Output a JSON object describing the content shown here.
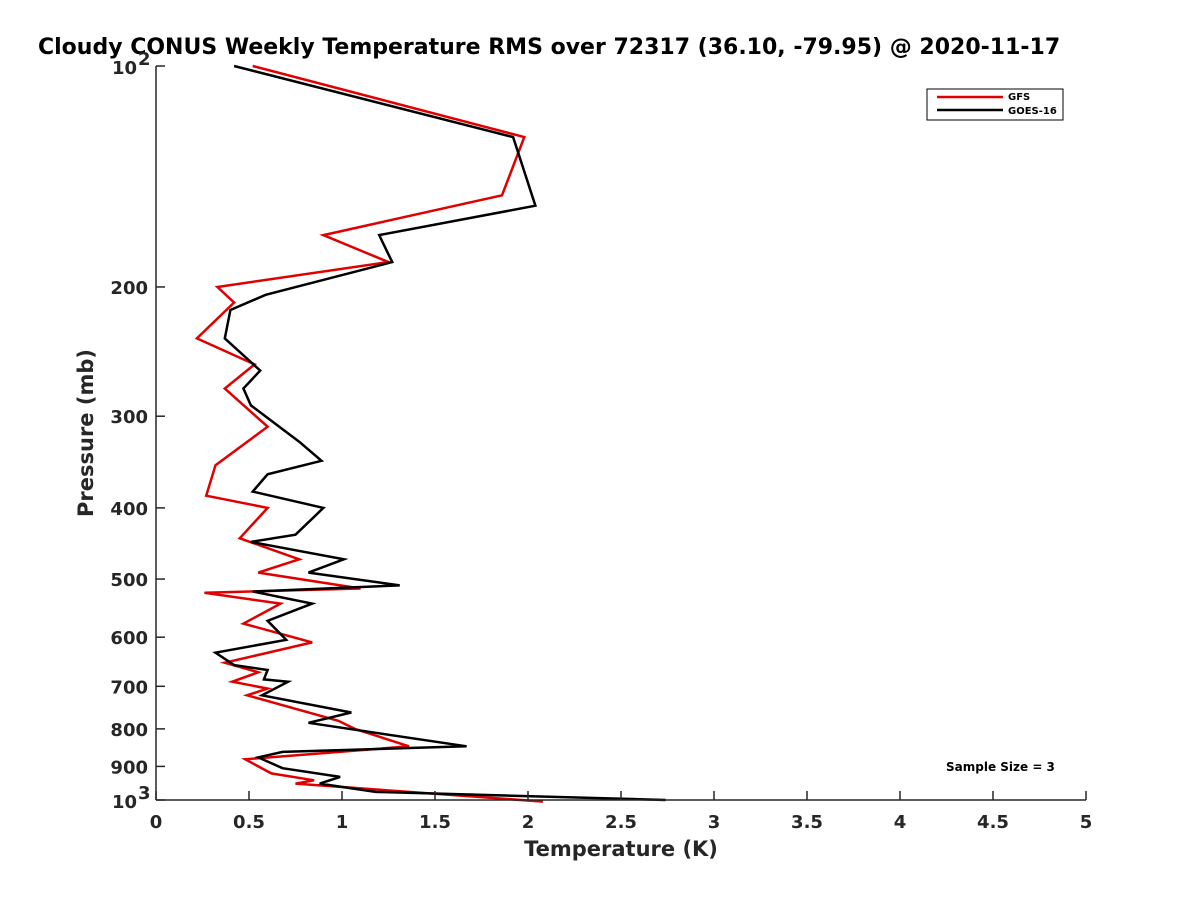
{
  "chart_data": {
    "type": "line",
    "title": "Cloudy CONUS Weekly Temperature RMS over 72317 (36.10, -79.95) @ 2020-11-17",
    "xlabel": "Temperature (K)",
    "ylabel": "Pressure (mb)",
    "xlim": [
      0,
      5
    ],
    "ylim": [
      100,
      1000
    ],
    "yscale": "log",
    "y_reversed": true,
    "x_ticks": [
      "0",
      "0.5",
      "1",
      "1.5",
      "2",
      "2.5",
      "3",
      "3.5",
      "4",
      "4.5",
      "5"
    ],
    "y_ticks": [
      {
        "value": 100,
        "base": "10",
        "exp": "2"
      },
      {
        "value": 200,
        "label": "200"
      },
      {
        "value": 300,
        "label": "300"
      },
      {
        "value": 400,
        "label": "400"
      },
      {
        "value": 500,
        "label": "500"
      },
      {
        "value": 600,
        "label": "600"
      },
      {
        "value": 700,
        "label": "700"
      },
      {
        "value": 800,
        "label": "800"
      },
      {
        "value": 900,
        "label": "900"
      },
      {
        "value": 1000,
        "base": "10",
        "exp": "3"
      }
    ],
    "grid": false,
    "legend_position": "top-right",
    "series": [
      {
        "name": "GFS",
        "color": "#e00000",
        "x": [
          0.52,
          1.98,
          1.86,
          0.9,
          1.25,
          0.33,
          0.42,
          0.22,
          0.53,
          0.37,
          0.6,
          0.32,
          0.27,
          0.6,
          0.45,
          0.77,
          0.55,
          1.1,
          0.26,
          0.67,
          0.47,
          0.84,
          0.37,
          0.55,
          0.41,
          0.6,
          0.49,
          0.98,
          1.07,
          1.36,
          0.48,
          0.62,
          0.85,
          0.75,
          2.08
        ],
        "y": [
          100,
          125,
          150,
          170,
          185,
          200,
          210,
          235,
          255,
          275,
          310,
          350,
          385,
          400,
          440,
          470,
          490,
          515,
          522,
          540,
          575,
          610,
          650,
          670,
          690,
          705,
          720,
          780,
          800,
          845,
          880,
          920,
          940,
          950,
          1005
        ]
      },
      {
        "name": "GOES-16",
        "color": "#000000",
        "x": [
          0.42,
          1.92,
          2.04,
          1.2,
          1.27,
          0.59,
          0.4,
          0.37,
          0.56,
          0.47,
          0.51,
          0.77,
          0.89,
          0.6,
          0.52,
          0.9,
          0.75,
          0.51,
          1.01,
          0.82,
          1.31,
          0.52,
          0.84,
          0.6,
          0.7,
          0.32,
          0.42,
          0.6,
          0.58,
          0.71,
          0.57,
          1.05,
          0.82,
          1.67,
          0.68,
          0.55,
          0.68,
          0.99,
          0.88,
          1.18,
          2.74
        ],
        "y": [
          100,
          125,
          155,
          170,
          185,
          205,
          215,
          235,
          260,
          275,
          290,
          325,
          345,
          360,
          380,
          400,
          435,
          445,
          470,
          490,
          510,
          520,
          540,
          570,
          605,
          630,
          655,
          665,
          685,
          690,
          720,
          760,
          785,
          845,
          860,
          875,
          905,
          930,
          950,
          975,
          1000
        ]
      }
    ],
    "annotation": "Sample Size = 3"
  }
}
